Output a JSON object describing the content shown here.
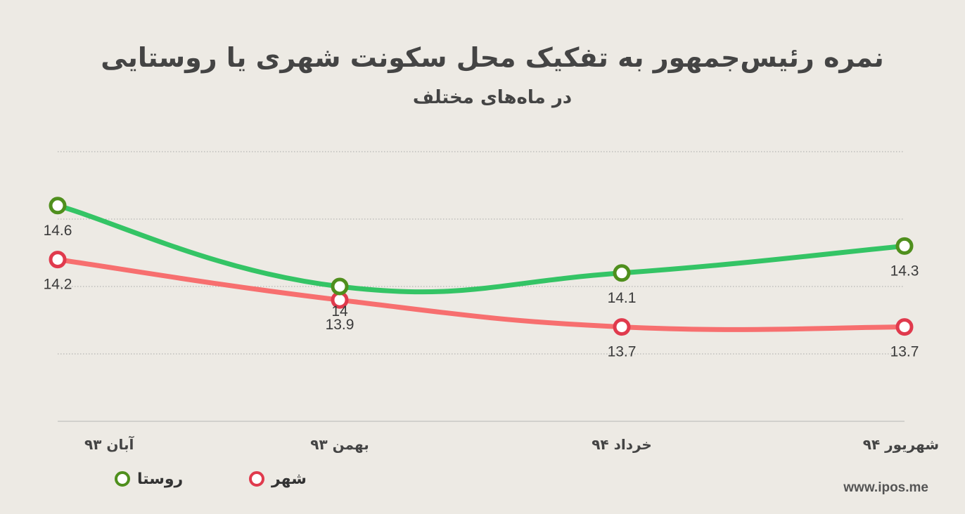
{
  "title": "نمره رئیس‌جمهور به تفکیک محل سکونت شهری یا روستایی",
  "subtitle": "در ماه‌های مختلف",
  "source": "www.ipos.me",
  "colors": {
    "background": "#edeae4",
    "rural_line": "#34c465",
    "rural_marker": "#4f8f1d",
    "urban_line": "#f76f6f",
    "urban_marker": "#e03a4d",
    "grid": "#a8a8a8",
    "axis": "#b5b5b5"
  },
  "chart_data": {
    "type": "line",
    "title": "نمره رئیس‌جمهور به تفکیک محل سکونت شهری یا روستایی",
    "subtitle": "در ماه‌های مختلف",
    "categories": [
      "آبان ۹۳",
      "بهمن ۹۳",
      "خرداد ۹۴",
      "شهریور ۹۴"
    ],
    "series": [
      {
        "name": "روستا",
        "values": [
          14.6,
          14,
          14.1,
          14.3
        ],
        "labels": [
          "14.6",
          "14",
          "14.1",
          "14.3"
        ]
      },
      {
        "name": "شهر",
        "values": [
          14.2,
          13.9,
          13.7,
          13.7
        ],
        "labels": [
          "14.2",
          "13.9",
          "13.7",
          "13.7"
        ]
      }
    ],
    "ylim": [
      13,
      15
    ],
    "grid": true,
    "legend": "bottom-left",
    "xlabel": "",
    "ylabel": ""
  }
}
